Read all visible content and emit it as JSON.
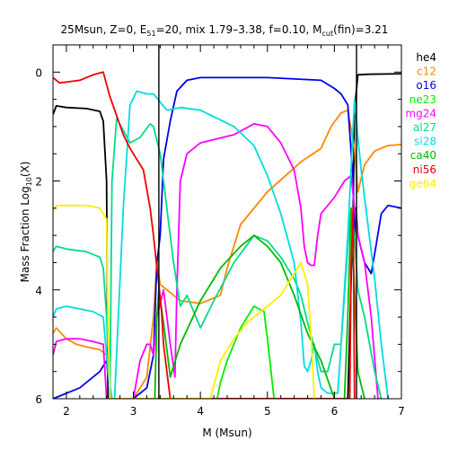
{
  "chart_data": {
    "type": "line",
    "title": {
      "parts": [
        {
          "t": "25Msun, Z=0, E",
          "s": "n"
        },
        {
          "t": "51",
          "s": "sub"
        },
        {
          "t": "=20, mix 1.79–3.38, f=0.10, M",
          "s": "n"
        },
        {
          "t": "cut",
          "s": "sub"
        },
        {
          "t": "(fin)=3.21",
          "s": "n"
        }
      ]
    },
    "xlabel": "M (Msun)",
    "ylabel": {
      "parts": [
        {
          "t": "Mass Fraction Log",
          "s": "n"
        },
        {
          "t": "10",
          "s": "sub"
        },
        {
          "t": "(X)",
          "s": "n"
        }
      ]
    },
    "xlim": [
      1.8,
      7.0
    ],
    "ylim": [
      -6,
      0.5
    ],
    "xticks": [
      2,
      3,
      4,
      5,
      6,
      7
    ],
    "yticks": [
      0,
      -2,
      -4,
      -6
    ],
    "ytick_labels": [
      "0",
      "2",
      "4",
      "6"
    ],
    "vlines": [
      3.38,
      6.33
    ],
    "grid": false,
    "legend_position": "right",
    "series": [
      {
        "name": "he4",
        "color": "#000000",
        "x": [
          1.8,
          1.85,
          2.0,
          2.3,
          2.5,
          2.55,
          2.6,
          2.62,
          2.65,
          6.2,
          6.28,
          6.3,
          6.35,
          6.5,
          7.0
        ],
        "y": [
          -0.78,
          -0.62,
          -0.65,
          -0.67,
          -0.72,
          -0.9,
          -2.0,
          -6.0,
          -6.0,
          -6.0,
          -2.5,
          -0.7,
          -0.05,
          -0.04,
          -0.03
        ]
      },
      {
        "name": "c12",
        "color": "#ff8800",
        "x": [
          1.8,
          1.85,
          2.0,
          2.15,
          2.3,
          2.5,
          2.6,
          2.65,
          2.7,
          2.8,
          3.0,
          3.2,
          3.3,
          3.35,
          3.4,
          3.7,
          4.0,
          4.3,
          4.4,
          4.6,
          5.0,
          5.5,
          5.8,
          5.95,
          6.1,
          6.2,
          6.3,
          6.35,
          6.45,
          6.6,
          6.8,
          7.0
        ],
        "y": [
          -4.8,
          -4.7,
          -4.9,
          -5.0,
          -5.05,
          -5.1,
          -5.2,
          -6.0,
          -6.0,
          -6.0,
          -6.0,
          -5.6,
          -4.5,
          -3.5,
          -3.9,
          -4.2,
          -4.25,
          -4.1,
          -3.6,
          -2.8,
          -2.2,
          -1.65,
          -1.4,
          -1.0,
          -0.75,
          -0.7,
          -1.4,
          -2.2,
          -1.7,
          -1.45,
          -1.35,
          -1.33
        ]
      },
      {
        "name": "o16",
        "color": "#0000ee",
        "x": [
          1.8,
          1.9,
          2.0,
          2.2,
          2.5,
          2.6,
          2.65,
          2.7,
          2.8,
          3.0,
          3.2,
          3.3,
          3.35,
          3.4,
          3.45,
          3.55,
          3.65,
          3.8,
          4.0,
          5.0,
          5.8,
          6.0,
          6.1,
          6.2,
          6.28,
          6.3,
          6.32,
          6.35,
          6.45,
          6.55,
          6.62,
          6.7,
          6.8,
          7.0
        ],
        "y": [
          -6.0,
          -5.95,
          -5.9,
          -5.8,
          -5.5,
          -5.3,
          -6.0,
          -6.0,
          -6.0,
          -6.0,
          -5.8,
          -5.2,
          -3.5,
          -3.0,
          -1.6,
          -0.9,
          -0.35,
          -0.15,
          -0.1,
          -0.1,
          -0.15,
          -0.3,
          -0.4,
          -0.6,
          -2.0,
          -3.0,
          -2.5,
          -3.0,
          -3.5,
          -3.7,
          -3.2,
          -2.6,
          -2.45,
          -2.5
        ]
      },
      {
        "name": "ne23",
        "color": "#00ee00",
        "x": [
          4.25,
          4.3,
          4.4,
          4.6,
          4.8,
          4.95,
          5.0,
          5.1
        ],
        "y": [
          -6.0,
          -5.7,
          -5.3,
          -4.7,
          -4.3,
          -4.4,
          -4.9,
          -6.0
        ]
      },
      {
        "name": "mg24",
        "color": "#ff00ff",
        "x": [
          1.8,
          1.85,
          2.0,
          2.2,
          2.4,
          2.55,
          2.6,
          2.65,
          3.0,
          3.1,
          3.2,
          3.25,
          3.3,
          3.35,
          3.45,
          3.55,
          3.62,
          3.65,
          3.7,
          3.8,
          4.0,
          4.5,
          4.8,
          5.0,
          5.2,
          5.4,
          5.5,
          5.55,
          5.6,
          5.65,
          5.7,
          5.75,
          5.8,
          6.0,
          6.15,
          6.25,
          6.3,
          6.35,
          6.45,
          6.55,
          6.65,
          6.7
        ],
        "y": [
          -5.2,
          -4.95,
          -4.9,
          -4.9,
          -4.95,
          -5.0,
          -6.0,
          -6.0,
          -6.0,
          -5.3,
          -5.0,
          -5.0,
          -5.2,
          -4.5,
          -4.0,
          -5.0,
          -5.6,
          -4.0,
          -2.0,
          -1.5,
          -1.3,
          -1.15,
          -0.95,
          -1.0,
          -1.3,
          -1.8,
          -2.5,
          -3.2,
          -3.5,
          -3.55,
          -3.55,
          -3.0,
          -2.6,
          -2.3,
          -2.0,
          -1.9,
          -2.5,
          -3.0,
          -3.5,
          -4.5,
          -6.0,
          -6.0
        ]
      },
      {
        "name": "al27",
        "color": "#00dd88",
        "x": [
          1.8,
          1.85,
          2.0,
          2.3,
          2.5,
          2.55,
          2.6,
          2.65,
          2.68,
          2.75,
          2.95,
          3.1,
          3.25,
          3.3,
          3.4,
          3.5,
          3.6,
          3.7,
          3.8,
          3.9,
          4.0,
          4.2,
          4.5,
          4.8,
          5.0,
          5.2,
          5.4,
          5.5,
          5.6,
          5.8,
          5.9,
          6.0,
          6.1,
          6.2,
          6.25,
          6.3,
          6.35,
          6.45,
          6.6,
          6.7
        ],
        "y": [
          -3.3,
          -3.2,
          -3.25,
          -3.3,
          -3.4,
          -3.6,
          -4.5,
          -6.0,
          -2.0,
          -0.85,
          -1.3,
          -1.2,
          -0.95,
          -1.0,
          -1.5,
          -2.5,
          -3.5,
          -4.3,
          -4.1,
          -4.4,
          -4.7,
          -4.2,
          -3.5,
          -3.0,
          -3.1,
          -3.4,
          -3.8,
          -4.1,
          -4.6,
          -5.5,
          -5.5,
          -5.0,
          -5.0,
          -3.2,
          -2.5,
          -3.0,
          -4.0,
          -4.5,
          -5.5,
          -6.0
        ]
      },
      {
        "name": "si28",
        "color": "#00dddd",
        "x": [
          1.8,
          1.85,
          2.0,
          2.2,
          2.4,
          2.55,
          2.62,
          2.68,
          2.72,
          2.85,
          2.95,
          3.05,
          3.2,
          3.3,
          3.4,
          3.5,
          3.7,
          4.0,
          4.5,
          4.8,
          5.0,
          5.2,
          5.4,
          5.5,
          5.55,
          5.6,
          5.65,
          5.7,
          5.75,
          5.8,
          5.9,
          6.0,
          6.05,
          6.1,
          6.2,
          6.3,
          6.35,
          6.4,
          6.5,
          6.6,
          6.7,
          6.8
        ],
        "y": [
          -4.5,
          -4.35,
          -4.3,
          -4.35,
          -4.4,
          -4.5,
          -5.5,
          -6.0,
          -6.0,
          -2.5,
          -0.6,
          -0.35,
          -0.4,
          -0.4,
          -0.55,
          -0.7,
          -0.65,
          -0.7,
          -1.0,
          -1.35,
          -1.9,
          -2.6,
          -3.5,
          -4.6,
          -5.4,
          -5.5,
          -5.3,
          -5.0,
          -5.5,
          -5.8,
          -5.9,
          -5.9,
          -5.9,
          -5.0,
          -3.0,
          -0.5,
          -1.2,
          -1.8,
          -2.8,
          -3.8,
          -5.0,
          -6.0
        ]
      },
      {
        "name": "ca40",
        "color": "#00bb00",
        "x": [
          3.32,
          3.35,
          3.38,
          3.45,
          3.55,
          3.7,
          4.0,
          4.3,
          4.6,
          4.8,
          5.0,
          5.2,
          5.4,
          5.6,
          5.8,
          6.0,
          6.15,
          6.2,
          6.25,
          6.3,
          6.35,
          6.45
        ],
        "y": [
          -6.0,
          -4.5,
          -4.0,
          -4.6,
          -5.6,
          -5.0,
          -4.2,
          -3.6,
          -3.2,
          -3.0,
          -3.2,
          -3.5,
          -4.1,
          -4.8,
          -5.3,
          -6.0,
          -6.0,
          -4.5,
          -2.5,
          -4.0,
          -5.5,
          -6.0
        ]
      },
      {
        "name": "ni56",
        "color": "#ee0000",
        "x": [
          1.8,
          1.85,
          1.9,
          2.2,
          2.4,
          2.55,
          2.65,
          2.75,
          2.85,
          2.95,
          3.05,
          3.15,
          3.25,
          3.3,
          3.35,
          3.38,
          3.42,
          3.45,
          3.5,
          3.55,
          6.23,
          6.25,
          6.28,
          6.3
        ],
        "y": [
          -0.1,
          -0.15,
          -0.2,
          -0.15,
          -0.05,
          0.0,
          -0.45,
          -0.8,
          -1.15,
          -1.4,
          -1.6,
          -1.8,
          -2.5,
          -3.0,
          -3.6,
          -3.9,
          -4.4,
          -5.0,
          -5.5,
          -6.0,
          -6.0,
          -3.5,
          -2.5,
          -6.0
        ]
      },
      {
        "name": "ge64",
        "color": "#ffee00",
        "x": [
          1.8,
          1.85,
          1.9,
          2.1,
          2.3,
          2.5,
          2.6,
          2.62,
          2.65,
          4.15,
          4.3,
          4.5,
          4.7,
          4.9,
          5.0,
          5.2,
          5.4,
          5.5,
          5.6,
          5.65,
          5.7
        ],
        "y": [
          -2.55,
          -2.45,
          -2.45,
          -2.45,
          -2.45,
          -2.5,
          -2.7,
          -4.5,
          -6.0,
          -6.0,
          -5.3,
          -4.9,
          -4.6,
          -4.4,
          -4.3,
          -4.1,
          -3.7,
          -3.5,
          -3.9,
          -4.8,
          -6.0
        ]
      }
    ]
  }
}
